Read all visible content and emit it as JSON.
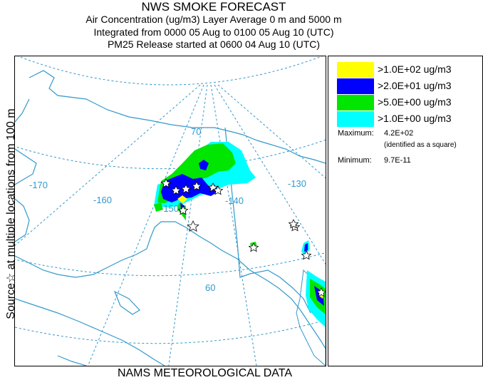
{
  "title": "NWS SMOKE FORECAST",
  "subtitle_lines": [
    "Air Concentration (ug/m3) Layer Average    0 m and  5000 m",
    "Integrated from 0000 05 Aug to 0100 05 Aug 10 (UTC)",
    "PM25 Release started at 0600 04 Aug 10 (UTC)"
  ],
  "side_label": "Source☆ at multiple locations  from   100 m",
  "footer": "NAMS METEOROLOGICAL DATA",
  "legend": {
    "items": [
      {
        "label": ">1.0E+02 ug/m3",
        "color": "#ffff00"
      },
      {
        "label": ">2.0E+01 ug/m3",
        "color": "#0000ff"
      },
      {
        "label": ">5.0E+00 ug/m3",
        "color": "#00e600"
      },
      {
        "label": ">1.0E+00 ug/m3",
        "color": "#00ffff"
      }
    ],
    "maximum_label": "Maximum:",
    "maximum_value": "4.2E+02",
    "maximum_note": "(identified as a square)",
    "minimum_label": "Minimum:",
    "minimum_value": "9.7E-11"
  },
  "map": {
    "graticule_color": "#3399cc",
    "coast_color": "#3399cc",
    "longitude_labels": [
      "-170",
      "-160",
      "-150",
      "-140",
      "-130"
    ],
    "latitude_labels": [
      "70",
      "60"
    ]
  }
}
